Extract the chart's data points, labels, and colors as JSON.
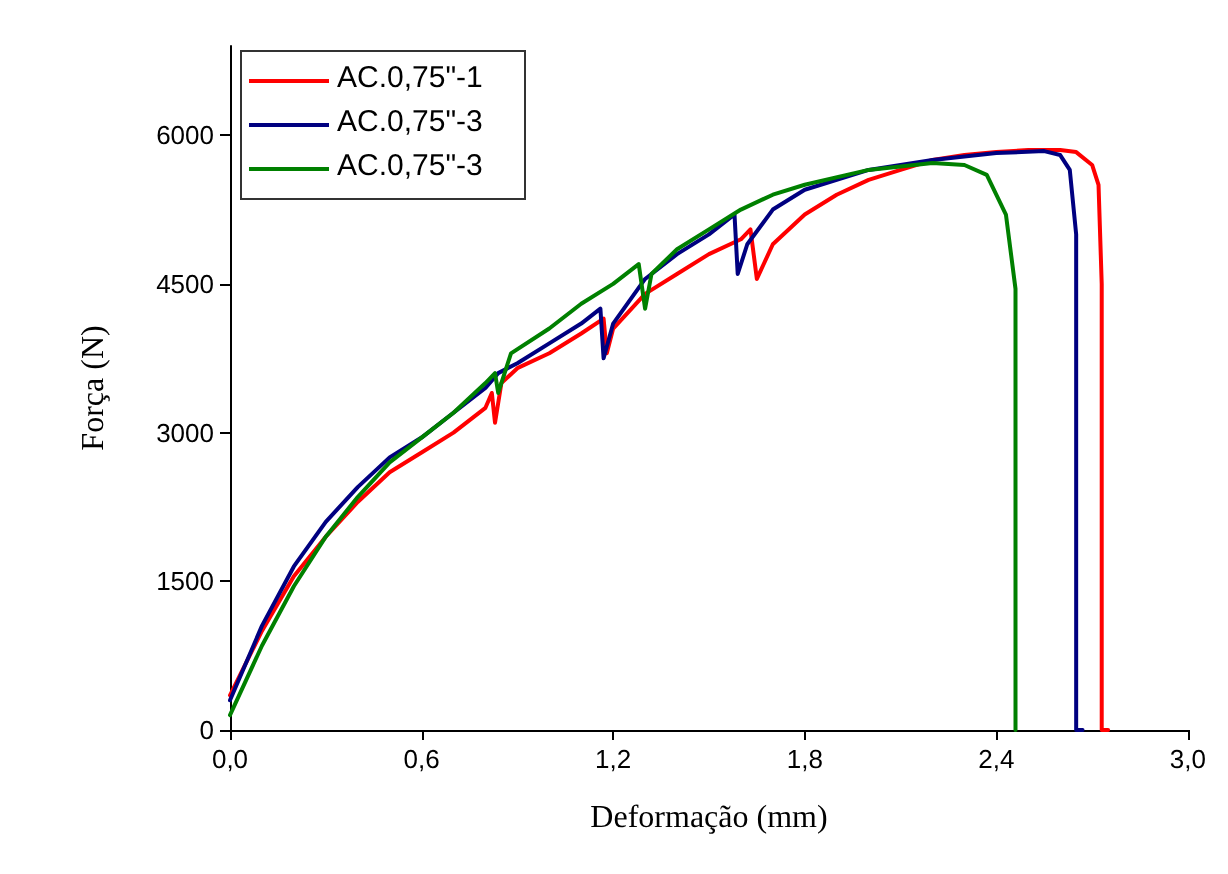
{
  "chart_data": {
    "type": "line",
    "xlabel": "Deformação (mm)",
    "ylabel": "Força (N)",
    "xlim": [
      0,
      3.0
    ],
    "ylim": [
      0,
      6900
    ],
    "xticks": [
      {
        "value": 0,
        "label": "0,0"
      },
      {
        "value": 0.6,
        "label": "0,6"
      },
      {
        "value": 1.2,
        "label": "1,2"
      },
      {
        "value": 1.8,
        "label": "1,8"
      },
      {
        "value": 2.4,
        "label": "2,4"
      },
      {
        "value": 3.0,
        "label": "3,0"
      }
    ],
    "yticks": [
      0,
      1500,
      3000,
      4500,
      6000
    ],
    "grid": false,
    "legend": "top left",
    "marker": "none",
    "line_style": "solid",
    "series": [
      {
        "name": "AC.0,75\"-1",
        "color": "#ff0000",
        "x": [
          0,
          0.1,
          0.2,
          0.3,
          0.4,
          0.5,
          0.6,
          0.7,
          0.8,
          0.82,
          0.83,
          0.85,
          0.9,
          1.0,
          1.1,
          1.17,
          1.18,
          1.2,
          1.3,
          1.4,
          1.5,
          1.6,
          1.63,
          1.65,
          1.7,
          1.8,
          1.9,
          2.0,
          2.1,
          2.2,
          2.3,
          2.4,
          2.5,
          2.6,
          2.65,
          2.7,
          2.72,
          2.73,
          2.73,
          2.75
        ],
        "values": [
          350,
          1000,
          1550,
          1950,
          2300,
          2600,
          2800,
          3000,
          3250,
          3400,
          3100,
          3500,
          3650,
          3800,
          4000,
          4150,
          3800,
          4050,
          4400,
          4600,
          4800,
          4950,
          5050,
          4550,
          4900,
          5200,
          5400,
          5550,
          5650,
          5750,
          5800,
          5830,
          5850,
          5850,
          5830,
          5700,
          5500,
          4500,
          0,
          0
        ]
      },
      {
        "name": "AC.0,75\"-3",
        "color": "#000080",
        "x": [
          0,
          0.1,
          0.2,
          0.3,
          0.4,
          0.5,
          0.6,
          0.7,
          0.8,
          0.84,
          0.9,
          1.0,
          1.1,
          1.16,
          1.17,
          1.2,
          1.3,
          1.4,
          1.5,
          1.58,
          1.59,
          1.62,
          1.7,
          1.8,
          1.9,
          2.0,
          2.2,
          2.4,
          2.55,
          2.6,
          2.63,
          2.65,
          2.65,
          2.67
        ],
        "values": [
          300,
          1050,
          1650,
          2100,
          2450,
          2750,
          2950,
          3200,
          3450,
          3600,
          3700,
          3900,
          4100,
          4250,
          3750,
          4100,
          4550,
          4800,
          5000,
          5200,
          4600,
          4900,
          5250,
          5450,
          5550,
          5650,
          5750,
          5820,
          5840,
          5800,
          5650,
          5000,
          0,
          0
        ]
      },
      {
        "name": "AC.0,75\"-3",
        "color": "#008000",
        "x": [
          0,
          0.1,
          0.2,
          0.3,
          0.4,
          0.5,
          0.6,
          0.7,
          0.8,
          0.83,
          0.84,
          0.88,
          1.0,
          1.1,
          1.2,
          1.28,
          1.3,
          1.32,
          1.4,
          1.5,
          1.6,
          1.7,
          1.8,
          2.0,
          2.2,
          2.3,
          2.37,
          2.43,
          2.46,
          2.46
        ],
        "values": [
          150,
          850,
          1450,
          1950,
          2350,
          2700,
          2950,
          3200,
          3500,
          3600,
          3400,
          3800,
          4050,
          4300,
          4500,
          4700,
          4250,
          4600,
          4850,
          5050,
          5250,
          5400,
          5500,
          5650,
          5720,
          5700,
          5600,
          5200,
          4450,
          0
        ]
      }
    ]
  }
}
